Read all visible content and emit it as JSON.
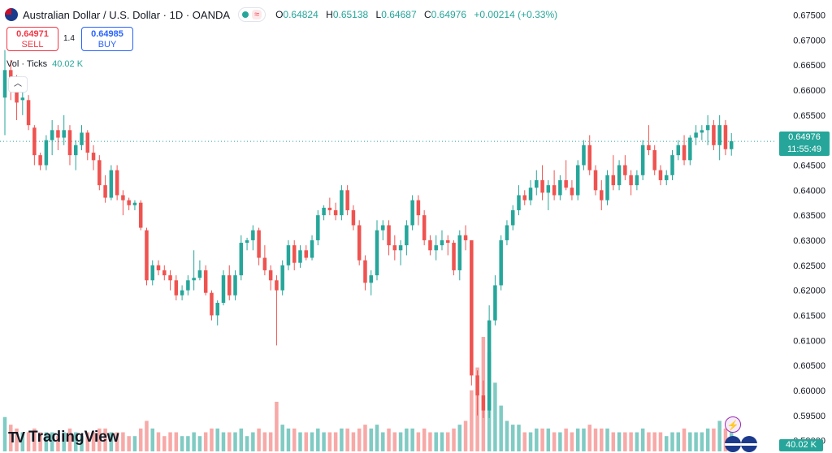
{
  "header": {
    "symbol": "Australian Dollar / U.S. Dollar · 1D · OANDA",
    "open_label": "O",
    "open": "0.64824",
    "high_label": "H",
    "high": "0.65138",
    "low_label": "L",
    "low": "0.64687",
    "close_label": "C",
    "close": "0.64976",
    "change": "+0.00214 (+0.33%)",
    "wave_icon": "≈"
  },
  "trade": {
    "sell_price": "0.64971",
    "sell_label": "SELL",
    "buy_price": "0.64985",
    "buy_label": "BUY",
    "spread": "1.4"
  },
  "volume": {
    "label": "Vol · Ticks",
    "value": "40.02 K"
  },
  "brand": {
    "logo_text": "TradingView",
    "logo_glyph": "TV"
  },
  "price_tag": {
    "price": "0.64976",
    "countdown": "11:55:49"
  },
  "vol_tag": "40.02 K",
  "colors": {
    "up": "#26a69a",
    "down": "#ef5350",
    "vol_up": "#80cbc4",
    "vol_down": "#f7a9a7",
    "grid": "#f0f3fa",
    "axis_text": "#131722"
  },
  "chart_data": {
    "type": "candlestick",
    "title": "Australian Dollar / U.S. Dollar · 1D · OANDA",
    "y_axis_ticks": [
      "0.67500",
      "0.67000",
      "0.66500",
      "0.66000",
      "0.65500",
      "0.65000",
      "0.64500",
      "0.64000",
      "0.63500",
      "0.63000",
      "0.62500",
      "0.62000",
      "0.61500",
      "0.61000",
      "0.60500",
      "0.60000",
      "0.59500",
      "0.59000"
    ],
    "ylim": [
      0.5875,
      0.678
    ],
    "last_price": 0.64976,
    "grid": false,
    "candles": [
      {
        "o": 0.6585,
        "h": 0.668,
        "l": 0.651,
        "c": 0.664,
        "v": 9
      },
      {
        "o": 0.664,
        "h": 0.666,
        "l": 0.658,
        "c": 0.66,
        "v": 7
      },
      {
        "o": 0.66,
        "h": 0.663,
        "l": 0.654,
        "c": 0.6575,
        "v": 6
      },
      {
        "o": 0.658,
        "h": 0.66,
        "l": 0.655,
        "c": 0.6585,
        "v": 5
      },
      {
        "o": 0.658,
        "h": 0.659,
        "l": 0.652,
        "c": 0.653,
        "v": 5
      },
      {
        "o": 0.6525,
        "h": 0.653,
        "l": 0.645,
        "c": 0.647,
        "v": 6
      },
      {
        "o": 0.647,
        "h": 0.6475,
        "l": 0.644,
        "c": 0.645,
        "v": 5
      },
      {
        "o": 0.645,
        "h": 0.651,
        "l": 0.644,
        "c": 0.65,
        "v": 5
      },
      {
        "o": 0.65,
        "h": 0.654,
        "l": 0.647,
        "c": 0.652,
        "v": 5
      },
      {
        "o": 0.652,
        "h": 0.653,
        "l": 0.648,
        "c": 0.6505,
        "v": 4
      },
      {
        "o": 0.6505,
        "h": 0.655,
        "l": 0.649,
        "c": 0.652,
        "v": 5
      },
      {
        "o": 0.652,
        "h": 0.653,
        "l": 0.645,
        "c": 0.647,
        "v": 6
      },
      {
        "o": 0.647,
        "h": 0.65,
        "l": 0.644,
        "c": 0.649,
        "v": 5
      },
      {
        "o": 0.649,
        "h": 0.653,
        "l": 0.648,
        "c": 0.6515,
        "v": 4
      },
      {
        "o": 0.6515,
        "h": 0.652,
        "l": 0.646,
        "c": 0.6475,
        "v": 5
      },
      {
        "o": 0.6475,
        "h": 0.649,
        "l": 0.644,
        "c": 0.646,
        "v": 5
      },
      {
        "o": 0.646,
        "h": 0.647,
        "l": 0.64,
        "c": 0.641,
        "v": 6
      },
      {
        "o": 0.641,
        "h": 0.643,
        "l": 0.6375,
        "c": 0.6385,
        "v": 6
      },
      {
        "o": 0.6385,
        "h": 0.645,
        "l": 0.638,
        "c": 0.644,
        "v": 5
      },
      {
        "o": 0.644,
        "h": 0.645,
        "l": 0.638,
        "c": 0.639,
        "v": 5
      },
      {
        "o": 0.639,
        "h": 0.64,
        "l": 0.635,
        "c": 0.638,
        "v": 5
      },
      {
        "o": 0.638,
        "h": 0.6385,
        "l": 0.636,
        "c": 0.637,
        "v": 4
      },
      {
        "o": 0.637,
        "h": 0.638,
        "l": 0.636,
        "c": 0.6375,
        "v": 4
      },
      {
        "o": 0.6375,
        "h": 0.638,
        "l": 0.632,
        "c": 0.6325,
        "v": 6
      },
      {
        "o": 0.632,
        "h": 0.6325,
        "l": 0.621,
        "c": 0.622,
        "v": 8
      },
      {
        "o": 0.622,
        "h": 0.626,
        "l": 0.621,
        "c": 0.625,
        "v": 6
      },
      {
        "o": 0.625,
        "h": 0.626,
        "l": 0.623,
        "c": 0.624,
        "v": 5
      },
      {
        "o": 0.624,
        "h": 0.625,
        "l": 0.622,
        "c": 0.623,
        "v": 4
      },
      {
        "o": 0.623,
        "h": 0.624,
        "l": 0.62,
        "c": 0.622,
        "v": 5
      },
      {
        "o": 0.622,
        "h": 0.623,
        "l": 0.618,
        "c": 0.619,
        "v": 5
      },
      {
        "o": 0.619,
        "h": 0.621,
        "l": 0.618,
        "c": 0.62,
        "v": 4
      },
      {
        "o": 0.62,
        "h": 0.623,
        "l": 0.619,
        "c": 0.622,
        "v": 4
      },
      {
        "o": 0.622,
        "h": 0.628,
        "l": 0.62,
        "c": 0.6225,
        "v": 5
      },
      {
        "o": 0.6225,
        "h": 0.626,
        "l": 0.622,
        "c": 0.624,
        "v": 4
      },
      {
        "o": 0.624,
        "h": 0.625,
        "l": 0.619,
        "c": 0.6195,
        "v": 5
      },
      {
        "o": 0.6195,
        "h": 0.62,
        "l": 0.614,
        "c": 0.615,
        "v": 6
      },
      {
        "o": 0.615,
        "h": 0.618,
        "l": 0.613,
        "c": 0.6175,
        "v": 6
      },
      {
        "o": 0.6175,
        "h": 0.624,
        "l": 0.617,
        "c": 0.623,
        "v": 5
      },
      {
        "o": 0.623,
        "h": 0.625,
        "l": 0.618,
        "c": 0.619,
        "v": 5
      },
      {
        "o": 0.619,
        "h": 0.624,
        "l": 0.618,
        "c": 0.623,
        "v": 5
      },
      {
        "o": 0.623,
        "h": 0.631,
        "l": 0.622,
        "c": 0.6295,
        "v": 6
      },
      {
        "o": 0.6295,
        "h": 0.6305,
        "l": 0.628,
        "c": 0.63,
        "v": 4
      },
      {
        "o": 0.63,
        "h": 0.633,
        "l": 0.628,
        "c": 0.632,
        "v": 5
      },
      {
        "o": 0.632,
        "h": 0.6325,
        "l": 0.625,
        "c": 0.6265,
        "v": 6
      },
      {
        "o": 0.6265,
        "h": 0.629,
        "l": 0.623,
        "c": 0.624,
        "v": 5
      },
      {
        "o": 0.624,
        "h": 0.625,
        "l": 0.62,
        "c": 0.622,
        "v": 5
      },
      {
        "o": 0.622,
        "h": 0.623,
        "l": 0.609,
        "c": 0.62,
        "v": 13
      },
      {
        "o": 0.62,
        "h": 0.626,
        "l": 0.619,
        "c": 0.625,
        "v": 7
      },
      {
        "o": 0.625,
        "h": 0.63,
        "l": 0.624,
        "c": 0.629,
        "v": 6
      },
      {
        "o": 0.629,
        "h": 0.63,
        "l": 0.624,
        "c": 0.6255,
        "v": 6
      },
      {
        "o": 0.6255,
        "h": 0.629,
        "l": 0.6245,
        "c": 0.628,
        "v": 5
      },
      {
        "o": 0.628,
        "h": 0.629,
        "l": 0.626,
        "c": 0.6265,
        "v": 5
      },
      {
        "o": 0.6265,
        "h": 0.631,
        "l": 0.626,
        "c": 0.63,
        "v": 5
      },
      {
        "o": 0.63,
        "h": 0.636,
        "l": 0.629,
        "c": 0.635,
        "v": 6
      },
      {
        "o": 0.635,
        "h": 0.637,
        "l": 0.634,
        "c": 0.6365,
        "v": 5
      },
      {
        "o": 0.6365,
        "h": 0.6385,
        "l": 0.635,
        "c": 0.636,
        "v": 5
      },
      {
        "o": 0.636,
        "h": 0.6375,
        "l": 0.634,
        "c": 0.635,
        "v": 5
      },
      {
        "o": 0.635,
        "h": 0.641,
        "l": 0.634,
        "c": 0.64,
        "v": 6
      },
      {
        "o": 0.64,
        "h": 0.641,
        "l": 0.635,
        "c": 0.636,
        "v": 6
      },
      {
        "o": 0.636,
        "h": 0.637,
        "l": 0.632,
        "c": 0.633,
        "v": 5
      },
      {
        "o": 0.633,
        "h": 0.634,
        "l": 0.625,
        "c": 0.626,
        "v": 6
      },
      {
        "o": 0.626,
        "h": 0.627,
        "l": 0.62,
        "c": 0.6215,
        "v": 7
      },
      {
        "o": 0.6215,
        "h": 0.624,
        "l": 0.619,
        "c": 0.623,
        "v": 6
      },
      {
        "o": 0.623,
        "h": 0.634,
        "l": 0.622,
        "c": 0.632,
        "v": 7
      },
      {
        "o": 0.632,
        "h": 0.634,
        "l": 0.63,
        "c": 0.633,
        "v": 5
      },
      {
        "o": 0.633,
        "h": 0.634,
        "l": 0.627,
        "c": 0.629,
        "v": 6
      },
      {
        "o": 0.629,
        "h": 0.631,
        "l": 0.626,
        "c": 0.628,
        "v": 5
      },
      {
        "o": 0.628,
        "h": 0.63,
        "l": 0.625,
        "c": 0.629,
        "v": 5
      },
      {
        "o": 0.629,
        "h": 0.634,
        "l": 0.627,
        "c": 0.633,
        "v": 6
      },
      {
        "o": 0.633,
        "h": 0.639,
        "l": 0.632,
        "c": 0.638,
        "v": 6
      },
      {
        "o": 0.638,
        "h": 0.639,
        "l": 0.633,
        "c": 0.635,
        "v": 5
      },
      {
        "o": 0.635,
        "h": 0.636,
        "l": 0.629,
        "c": 0.63,
        "v": 6
      },
      {
        "o": 0.63,
        "h": 0.631,
        "l": 0.627,
        "c": 0.628,
        "v": 5
      },
      {
        "o": 0.628,
        "h": 0.631,
        "l": 0.626,
        "c": 0.629,
        "v": 5
      },
      {
        "o": 0.629,
        "h": 0.632,
        "l": 0.628,
        "c": 0.63,
        "v": 5
      },
      {
        "o": 0.63,
        "h": 0.631,
        "l": 0.627,
        "c": 0.6295,
        "v": 5
      },
      {
        "o": 0.6295,
        "h": 0.63,
        "l": 0.623,
        "c": 0.624,
        "v": 6
      },
      {
        "o": 0.624,
        "h": 0.632,
        "l": 0.622,
        "c": 0.631,
        "v": 7
      },
      {
        "o": 0.631,
        "h": 0.633,
        "l": 0.628,
        "c": 0.63,
        "v": 8
      },
      {
        "o": 0.63,
        "h": 0.63,
        "l": 0.601,
        "c": 0.603,
        "v": 16
      },
      {
        "o": 0.603,
        "h": 0.604,
        "l": 0.595,
        "c": 0.599,
        "v": 22
      },
      {
        "o": 0.599,
        "h": 0.602,
        "l": 0.5945,
        "c": 0.596,
        "v": 30
      },
      {
        "o": 0.596,
        "h": 0.617,
        "l": 0.5945,
        "c": 0.614,
        "v": 26
      },
      {
        "o": 0.614,
        "h": 0.623,
        "l": 0.613,
        "c": 0.621,
        "v": 18
      },
      {
        "o": 0.621,
        "h": 0.631,
        "l": 0.62,
        "c": 0.63,
        "v": 12
      },
      {
        "o": 0.63,
        "h": 0.634,
        "l": 0.629,
        "c": 0.633,
        "v": 8
      },
      {
        "o": 0.633,
        "h": 0.637,
        "l": 0.632,
        "c": 0.636,
        "v": 7
      },
      {
        "o": 0.636,
        "h": 0.641,
        "l": 0.635,
        "c": 0.639,
        "v": 7
      },
      {
        "o": 0.639,
        "h": 0.64,
        "l": 0.637,
        "c": 0.638,
        "v": 5
      },
      {
        "o": 0.638,
        "h": 0.642,
        "l": 0.637,
        "c": 0.6405,
        "v": 5
      },
      {
        "o": 0.6405,
        "h": 0.644,
        "l": 0.639,
        "c": 0.642,
        "v": 6
      },
      {
        "o": 0.642,
        "h": 0.645,
        "l": 0.638,
        "c": 0.6395,
        "v": 6
      },
      {
        "o": 0.6395,
        "h": 0.642,
        "l": 0.636,
        "c": 0.641,
        "v": 6
      },
      {
        "o": 0.641,
        "h": 0.644,
        "l": 0.638,
        "c": 0.639,
        "v": 5
      },
      {
        "o": 0.639,
        "h": 0.643,
        "l": 0.638,
        "c": 0.642,
        "v": 5
      },
      {
        "o": 0.642,
        "h": 0.646,
        "l": 0.64,
        "c": 0.6405,
        "v": 6
      },
      {
        "o": 0.6405,
        "h": 0.642,
        "l": 0.638,
        "c": 0.639,
        "v": 5
      },
      {
        "o": 0.639,
        "h": 0.646,
        "l": 0.638,
        "c": 0.645,
        "v": 6
      },
      {
        "o": 0.645,
        "h": 0.65,
        "l": 0.644,
        "c": 0.649,
        "v": 6
      },
      {
        "o": 0.649,
        "h": 0.651,
        "l": 0.643,
        "c": 0.644,
        "v": 7
      },
      {
        "o": 0.644,
        "h": 0.645,
        "l": 0.639,
        "c": 0.64,
        "v": 6
      },
      {
        "o": 0.64,
        "h": 0.642,
        "l": 0.636,
        "c": 0.638,
        "v": 6
      },
      {
        "o": 0.638,
        "h": 0.644,
        "l": 0.637,
        "c": 0.643,
        "v": 6
      },
      {
        "o": 0.643,
        "h": 0.647,
        "l": 0.64,
        "c": 0.641,
        "v": 5
      },
      {
        "o": 0.641,
        "h": 0.646,
        "l": 0.64,
        "c": 0.645,
        "v": 5
      },
      {
        "o": 0.645,
        "h": 0.647,
        "l": 0.642,
        "c": 0.643,
        "v": 5
      },
      {
        "o": 0.643,
        "h": 0.644,
        "l": 0.639,
        "c": 0.641,
        "v": 5
      },
      {
        "o": 0.641,
        "h": 0.644,
        "l": 0.64,
        "c": 0.643,
        "v": 5
      },
      {
        "o": 0.643,
        "h": 0.65,
        "l": 0.642,
        "c": 0.649,
        "v": 6
      },
      {
        "o": 0.649,
        "h": 0.653,
        "l": 0.647,
        "c": 0.648,
        "v": 5
      },
      {
        "o": 0.648,
        "h": 0.649,
        "l": 0.643,
        "c": 0.644,
        "v": 5
      },
      {
        "o": 0.644,
        "h": 0.645,
        "l": 0.641,
        "c": 0.642,
        "v": 5
      },
      {
        "o": 0.642,
        "h": 0.644,
        "l": 0.641,
        "c": 0.643,
        "v": 4
      },
      {
        "o": 0.643,
        "h": 0.648,
        "l": 0.642,
        "c": 0.647,
        "v": 5
      },
      {
        "o": 0.647,
        "h": 0.65,
        "l": 0.646,
        "c": 0.649,
        "v": 5
      },
      {
        "o": 0.649,
        "h": 0.651,
        "l": 0.645,
        "c": 0.646,
        "v": 6
      },
      {
        "o": 0.646,
        "h": 0.651,
        "l": 0.645,
        "c": 0.6505,
        "v": 5
      },
      {
        "o": 0.6505,
        "h": 0.653,
        "l": 0.649,
        "c": 0.6515,
        "v": 5
      },
      {
        "o": 0.6515,
        "h": 0.653,
        "l": 0.65,
        "c": 0.652,
        "v": 5
      },
      {
        "o": 0.652,
        "h": 0.655,
        "l": 0.649,
        "c": 0.653,
        "v": 6
      },
      {
        "o": 0.653,
        "h": 0.654,
        "l": 0.648,
        "c": 0.649,
        "v": 6
      },
      {
        "o": 0.649,
        "h": 0.655,
        "l": 0.646,
        "c": 0.653,
        "v": 8
      },
      {
        "o": 0.653,
        "h": 0.654,
        "l": 0.647,
        "c": 0.6482,
        "v": 6
      },
      {
        "o": 0.6482,
        "h": 0.6514,
        "l": 0.6469,
        "c": 0.6498,
        "v": 6
      }
    ]
  }
}
